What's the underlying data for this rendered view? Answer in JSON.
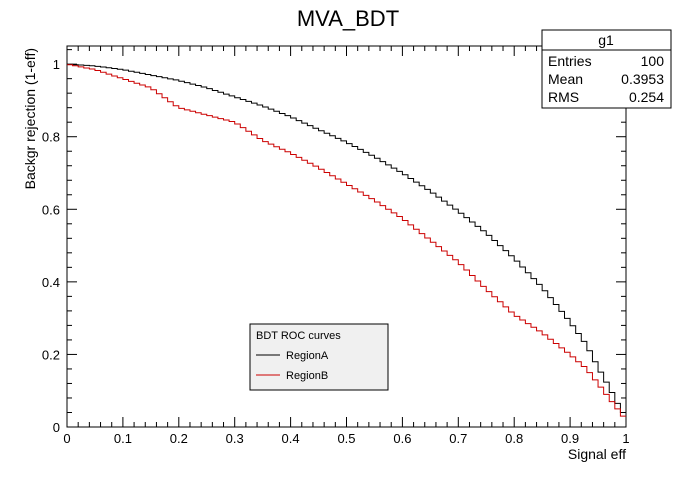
{
  "chart_data": {
    "type": "line",
    "title": "MVA_BDT",
    "xlabel": "Signal eff",
    "ylabel": "Backgr rejection (1-eff)",
    "xlim": [
      0,
      1
    ],
    "ylim": [
      0,
      1.05
    ],
    "x_ticks": [
      "0",
      "0.1",
      "0.2",
      "0.3",
      "0.4",
      "0.5",
      "0.6",
      "0.7",
      "0.8",
      "0.9",
      "1"
    ],
    "y_ticks": [
      "0",
      "0.2",
      "0.4",
      "0.6",
      "0.8",
      "1"
    ],
    "grid": false,
    "stepped": true,
    "stats_box": {
      "title": "g1",
      "rows": [
        {
          "label": "Entries",
          "value": "100"
        },
        {
          "label": "Mean",
          "value": "0.3953"
        },
        {
          "label": "RMS",
          "value": "0.254"
        }
      ]
    },
    "legend": {
      "title": "BDT ROC curves",
      "position": "bottom-center",
      "entries": [
        "RegionA",
        "RegionB"
      ]
    },
    "series": [
      {
        "name": "RegionA",
        "color": "#000000",
        "x": [
          0,
          0.05,
          0.1,
          0.15,
          0.2,
          0.25,
          0.3,
          0.35,
          0.4,
          0.45,
          0.5,
          0.55,
          0.6,
          0.65,
          0.7,
          0.75,
          0.8,
          0.85,
          0.9,
          0.93,
          0.95,
          0.97,
          0.99,
          1.0
        ],
        "y": [
          1.0,
          0.995,
          0.985,
          0.97,
          0.955,
          0.935,
          0.91,
          0.885,
          0.855,
          0.82,
          0.785,
          0.745,
          0.7,
          0.65,
          0.595,
          0.535,
          0.465,
          0.385,
          0.29,
          0.225,
          0.165,
          0.11,
          0.05,
          0.03
        ]
      },
      {
        "name": "RegionB",
        "color": "#cc0000",
        "x": [
          0,
          0.05,
          0.1,
          0.15,
          0.2,
          0.25,
          0.3,
          0.35,
          0.4,
          0.45,
          0.5,
          0.55,
          0.6,
          0.65,
          0.7,
          0.75,
          0.8,
          0.85,
          0.9,
          0.93,
          0.95,
          0.97,
          0.99,
          1.0
        ],
        "y": [
          1.0,
          0.985,
          0.96,
          0.935,
          0.88,
          0.86,
          0.84,
          0.79,
          0.755,
          0.715,
          0.67,
          0.625,
          0.575,
          0.515,
          0.455,
          0.38,
          0.31,
          0.26,
          0.2,
          0.16,
          0.12,
          0.08,
          0.04,
          0.02
        ]
      }
    ]
  }
}
